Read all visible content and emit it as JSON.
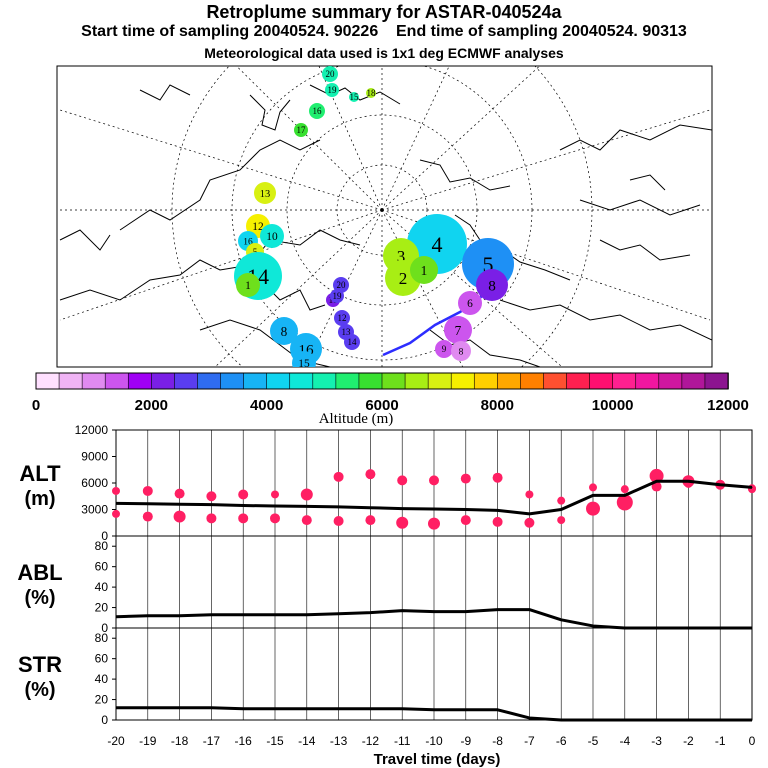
{
  "header": {
    "title": "Retroplume summary for ASTAR-040524a",
    "subtitle_start": "Start time of sampling 20040524. 90226",
    "subtitle_end": "End time of sampling 20040524. 90313",
    "subtitle_met": "Meteorological data used is 1x1 deg ECMWF analyses"
  },
  "colorbar": {
    "label": "Altitude (m)",
    "ticks": [
      "0",
      "2000",
      "4000",
      "6000",
      "8000",
      "10000",
      "12000"
    ],
    "colors": [
      "#ffe0ff",
      "#f0b4f5",
      "#e08af0",
      "#cc55ee",
      "#a000f5",
      "#7a1fe6",
      "#5a3df0",
      "#2f6cf0",
      "#1e90f5",
      "#17b4f5",
      "#10d4f0",
      "#0fe8d8",
      "#14f0b0",
      "#20ee70",
      "#38e030",
      "#6ee01c",
      "#a8ee14",
      "#d8f012",
      "#f6f000",
      "#ffd000",
      "#ffa800",
      "#ff8000",
      "#ff5030",
      "#ff2050",
      "#ff1070",
      "#ff2090",
      "#f016a0",
      "#d016a0",
      "#b0169a",
      "#8c1490"
    ]
  },
  "map": {
    "plume_labels": [
      {
        "text": "20",
        "alt": 5000
      },
      {
        "text": "19",
        "alt": 5000
      },
      {
        "text": "15",
        "alt": 5000
      },
      {
        "text": "18",
        "alt": 6500
      },
      {
        "text": "16",
        "alt": 5200
      },
      {
        "text": "17",
        "alt": 5600
      },
      {
        "text": "13",
        "alt": 6800
      },
      {
        "text": "12",
        "alt": 7200
      },
      {
        "text": "10",
        "alt": 4600
      },
      {
        "text": "16",
        "alt": 4000
      },
      {
        "text": "5",
        "alt": 6800
      },
      {
        "text": "14",
        "alt": 4400
      },
      {
        "text": "1",
        "alt": 6200
      },
      {
        "text": "4",
        "alt": 4300
      },
      {
        "text": "3",
        "alt": 6400
      },
      {
        "text": "2",
        "alt": 6400
      },
      {
        "text": "1",
        "alt": 6000
      },
      {
        "text": "5",
        "alt": 3200
      },
      {
        "text": "8",
        "alt": 2000
      },
      {
        "text": "6",
        "alt": 1400
      },
      {
        "text": "7",
        "alt": 1400
      },
      {
        "text": "9",
        "alt": 1200
      },
      {
        "text": "8",
        "alt": 800
      },
      {
        "text": "8",
        "alt": 3800
      },
      {
        "text": "16",
        "alt": 3600
      },
      {
        "text": "15",
        "alt": 3800
      },
      {
        "text": "11",
        "alt": 2200
      },
      {
        "text": "12",
        "alt": 2600
      },
      {
        "text": "13",
        "alt": 2400
      },
      {
        "text": "14",
        "alt": 2400
      },
      {
        "text": "20",
        "alt": 2600
      },
      {
        "text": "19",
        "alt": 2400
      }
    ]
  },
  "chart_data": [
    {
      "type": "line",
      "panel": "ALT",
      "ylabel": "ALT",
      "yunit": "(m)",
      "ylim": [
        0,
        12000
      ],
      "yticks": [
        "0",
        "3000",
        "6000",
        "9000",
        "12000"
      ],
      "x": [
        -20,
        -19,
        -18,
        -17,
        -16,
        -15,
        -14,
        -13,
        -12,
        -11,
        -10,
        -9,
        -8,
        -7,
        -6,
        -5,
        -4,
        -3,
        -2,
        -1,
        0
      ],
      "values": [
        3700,
        3650,
        3600,
        3550,
        3450,
        3400,
        3350,
        3300,
        3200,
        3100,
        3050,
        3000,
        2900,
        2500,
        3000,
        4600,
        4600,
        6200,
        6200,
        5800,
        5500
      ],
      "upper_cluster": [
        5100,
        5100,
        4800,
        4500,
        4700,
        4700,
        4700,
        6700,
        7000,
        6300,
        6300,
        6500,
        6600,
        4700,
        4000,
        5500,
        5300,
        6800,
        6200,
        5800,
        5400
      ],
      "lower_cluster": [
        2500,
        2200,
        2200,
        2000,
        2000,
        2000,
        1800,
        1700,
        1800,
        1500,
        1400,
        1800,
        1600,
        1500,
        1800,
        3100,
        3800,
        5600,
        5900,
        5700,
        5300
      ]
    },
    {
      "type": "line",
      "panel": "ABL",
      "ylabel": "ABL",
      "yunit": "(%)",
      "ylim": [
        0,
        90
      ],
      "yticks": [
        "0",
        "20",
        "40",
        "60",
        "80"
      ],
      "x": [
        -20,
        -19,
        -18,
        -17,
        -16,
        -15,
        -14,
        -13,
        -12,
        -11,
        -10,
        -9,
        -8,
        -7,
        -6,
        -5,
        -4,
        -3,
        -2,
        -1,
        0
      ],
      "values": [
        11,
        12,
        12,
        13,
        13,
        13,
        13,
        14,
        15,
        17,
        16,
        16,
        18,
        18,
        8,
        2,
        0,
        0,
        0,
        0,
        0
      ]
    },
    {
      "type": "line",
      "panel": "STR",
      "ylabel": "STR",
      "yunit": "(%)",
      "ylim": [
        0,
        90
      ],
      "yticks": [
        "0",
        "20",
        "40",
        "60",
        "80"
      ],
      "x": [
        -20,
        -19,
        -18,
        -17,
        -16,
        -15,
        -14,
        -13,
        -12,
        -11,
        -10,
        -9,
        -8,
        -7,
        -6,
        -5,
        -4,
        -3,
        -2,
        -1,
        0
      ],
      "values": [
        12,
        12,
        12,
        12,
        11,
        11,
        11,
        11,
        11,
        11,
        10,
        10,
        10,
        2,
        0,
        0,
        0,
        0,
        0,
        0,
        0
      ]
    }
  ],
  "xaxis": {
    "label": "Travel time (days)",
    "ticks": [
      "-20",
      "-19",
      "-18",
      "-17",
      "-16",
      "-15",
      "-14",
      "-13",
      "-12",
      "-11",
      "-10",
      "-9",
      "-8",
      "-7",
      "-6",
      "-5",
      "-4",
      "-3",
      "-2",
      "-1",
      "0"
    ]
  }
}
